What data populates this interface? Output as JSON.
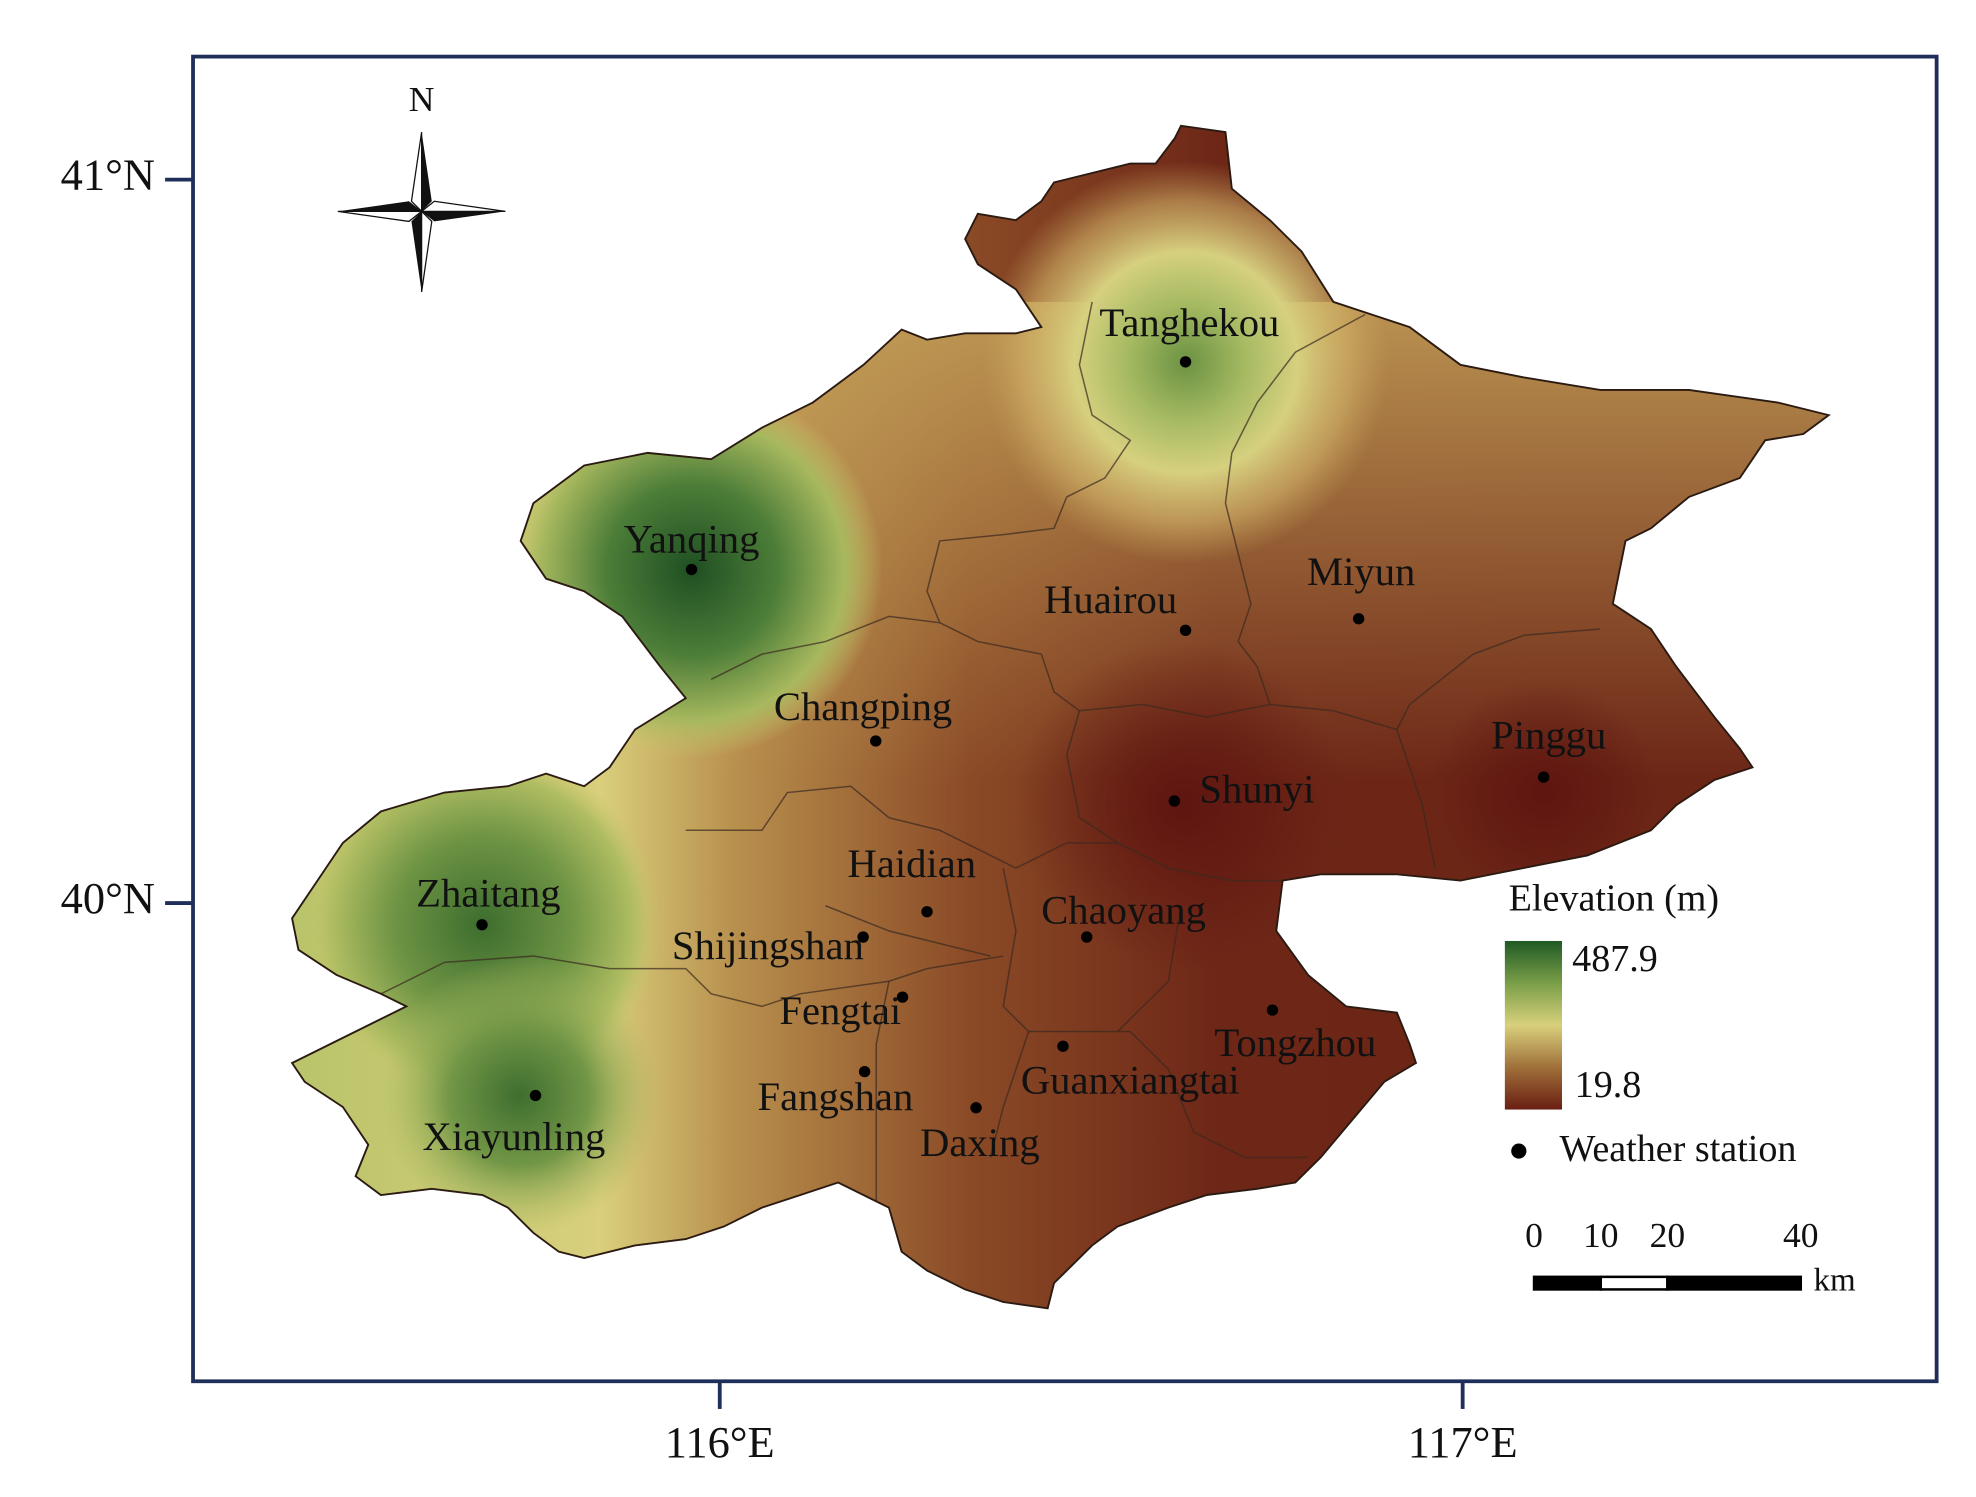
{
  "map": {
    "compass_label": "N",
    "lon_lim": [
      115.291,
      117.638
    ],
    "lat_lim": [
      39.339,
      41.17
    ],
    "lon_ticks": [
      {
        "value": 116,
        "label": "116°E"
      },
      {
        "value": 117,
        "label": "117°E"
      }
    ],
    "lat_ticks": [
      {
        "value": 41,
        "label": "41°N"
      },
      {
        "value": 40,
        "label": "40°N"
      }
    ],
    "stations": [
      {
        "name": "Tanghekou",
        "lon": 116.627,
        "lat": 40.748
      },
      {
        "name": "Yanqing",
        "lon": 115.962,
        "lat": 40.461
      },
      {
        "name": "Huairou",
        "lon": 116.627,
        "lat": 40.377
      },
      {
        "name": "Miyun",
        "lon": 116.86,
        "lat": 40.393
      },
      {
        "name": "Changping",
        "lon": 116.21,
        "lat": 40.224
      },
      {
        "name": "Pinggu",
        "lon": 117.109,
        "lat": 40.174
      },
      {
        "name": "Shunyi",
        "lon": 116.612,
        "lat": 40.141
      },
      {
        "name": "Haidian",
        "lon": 116.279,
        "lat": 39.988
      },
      {
        "name": "Zhaitang",
        "lon": 115.68,
        "lat": 39.97
      },
      {
        "name": "Chaoyang",
        "lon": 116.494,
        "lat": 39.953
      },
      {
        "name": "Shijingshan",
        "lon": 116.193,
        "lat": 39.953
      },
      {
        "name": "Fengtai",
        "lon": 116.246,
        "lat": 39.87
      },
      {
        "name": "Tongzhou",
        "lon": 116.744,
        "lat": 39.852
      },
      {
        "name": "Guanxiangtai",
        "lon": 116.462,
        "lat": 39.802
      },
      {
        "name": "Fangshan",
        "lon": 116.195,
        "lat": 39.767
      },
      {
        "name": "Xiayunling",
        "lon": 115.752,
        "lat": 39.734
      },
      {
        "name": "Daxing",
        "lon": 116.345,
        "lat": 39.717
      }
    ],
    "legend": {
      "title": "Elevation (m)",
      "max": 487.9,
      "min": 19.8,
      "station_label": "Weather station"
    },
    "scale_bar": {
      "ticks": [
        0,
        10,
        20,
        40
      ],
      "unit": "km"
    }
  }
}
